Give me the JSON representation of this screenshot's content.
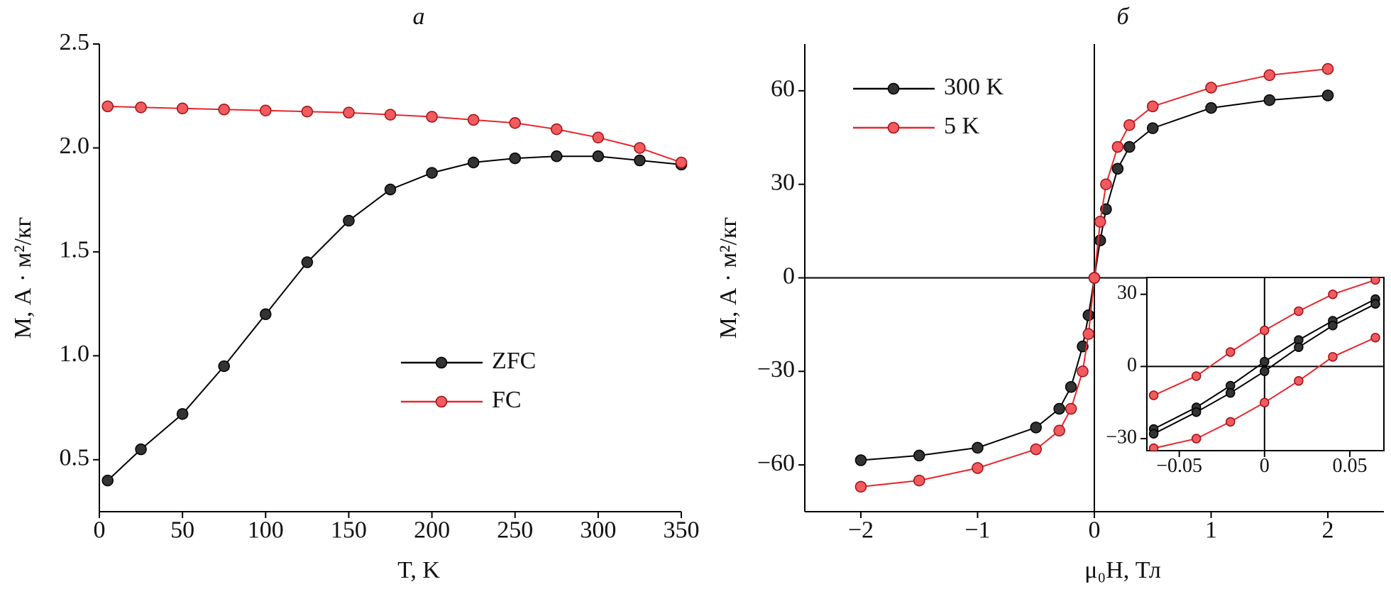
{
  "chart_data": [
    {
      "type": "line",
      "title": "а",
      "x_label": "T, K",
      "y_label": "M, А · м²/кг",
      "x": [
        5,
        25,
        50,
        75,
        100,
        125,
        150,
        175,
        200,
        225,
        250,
        275,
        300,
        325,
        350
      ],
      "series": [
        {
          "name": "ZFC",
          "color": "#000000",
          "values": [
            0.4,
            0.55,
            0.72,
            0.95,
            1.2,
            1.45,
            1.65,
            1.8,
            1.88,
            1.93,
            1.95,
            1.96,
            1.96,
            1.94,
            1.92
          ]
        },
        {
          "name": "FC",
          "color": "#e8262b",
          "values": [
            2.2,
            2.195,
            2.19,
            2.185,
            2.18,
            2.175,
            2.17,
            2.16,
            2.15,
            2.135,
            2.12,
            2.09,
            2.05,
            2.0,
            1.93
          ]
        }
      ],
      "xlim": [
        0,
        350
      ],
      "ylim": [
        0.25,
        2.5
      ],
      "xticks": [
        0,
        50,
        100,
        150,
        200,
        250,
        300,
        350
      ],
      "yticks": [
        0.5,
        {
          "value": 1.0,
          "label": "1.0"
        },
        1.5,
        {
          "value": 2.0,
          "label": "2.0"
        },
        2.5
      ],
      "legend": "lower right"
    },
    {
      "type": "line",
      "title": "б",
      "x_label": "μ₀H, Тл",
      "y_label": "M, А · м²/кг",
      "x": [
        -2,
        -1.5,
        -1,
        -0.5,
        -0.3,
        -0.2,
        -0.1,
        -0.05,
        0,
        0.05,
        0.1,
        0.2,
        0.3,
        0.5,
        1,
        1.5,
        2
      ],
      "series": [
        {
          "name": "300 K",
          "color": "#000000",
          "values": [
            -58.5,
            -57,
            -54.5,
            -48,
            -42,
            -35,
            -22,
            -12,
            0,
            12,
            22,
            35,
            42,
            48,
            54.5,
            57,
            58.5
          ]
        },
        {
          "name": "5 K",
          "color": "#e8262b",
          "values": [
            -67,
            -65,
            -61,
            -55,
            -49,
            -42,
            -30,
            -18,
            0,
            18,
            30,
            42,
            49,
            55,
            61,
            65,
            67
          ]
        }
      ],
      "xlim": [
        -2.48,
        2.48
      ],
      "ylim": [
        -75,
        75
      ],
      "xticks": [
        {
          "value": -2,
          "label": "−2"
        },
        {
          "value": -1,
          "label": "−1"
        },
        0,
        1,
        2
      ],
      "yticks": [
        {
          "value": -60,
          "label": "−60"
        },
        {
          "value": -30,
          "label": "−30"
        },
        0,
        30,
        60
      ],
      "legend": "upper left",
      "zero_lines": true
    },
    {
      "type": "line",
      "x": [
        -0.065,
        -0.04,
        -0.02,
        0,
        0.02,
        0.04,
        0.065
      ],
      "series": [
        {
          "color": "#e8262b",
          "values": [
            -12,
            -4,
            6,
            15,
            23,
            30,
            36
          ]
        },
        {
          "color": "#e8262b",
          "values": [
            -34,
            -30,
            -23,
            -15,
            -6,
            4,
            12
          ]
        },
        {
          "color": "#000000",
          "values": [
            -26,
            -17,
            -8,
            2,
            11,
            19,
            28
          ]
        },
        {
          "color": "#000000",
          "values": [
            -28,
            -19,
            -11,
            -2,
            8,
            17,
            26
          ]
        }
      ],
      "xlim": [
        -0.069,
        0.07
      ],
      "ylim": [
        -35,
        37
      ],
      "xticks": [
        {
          "value": -0.05,
          "label": "−0.05"
        },
        0,
        0.05
      ],
      "yticks": [
        {
          "value": -30,
          "label": "−30"
        },
        0,
        30
      ],
      "zero_lines": true,
      "frame": true
    }
  ]
}
